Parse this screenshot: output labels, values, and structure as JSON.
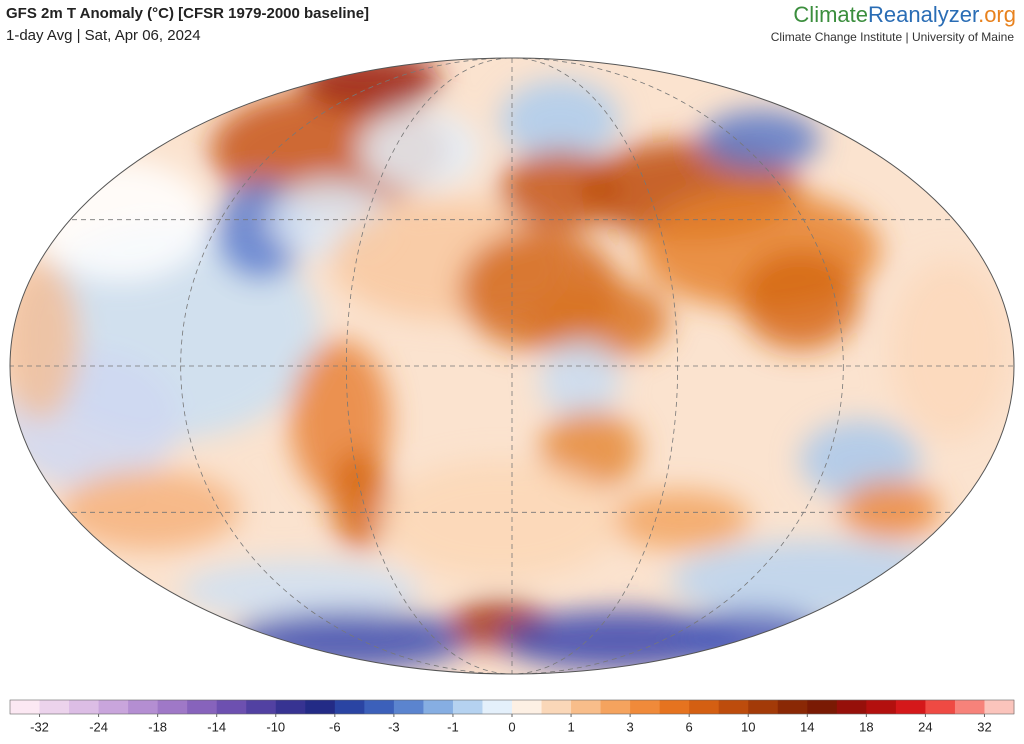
{
  "header": {
    "title": "GFS 2m T Anomaly (°C) [CFSR 1979-2000 baseline]",
    "subtitle": "1-day Avg | Sat, Apr 06, 2024"
  },
  "logo": {
    "parts": [
      "Climate",
      "Reanalyzer",
      ".org"
    ],
    "tagline": "Climate Change Institute | University of Maine"
  },
  "colorbar": {
    "ticks": [
      -32,
      -24,
      -18,
      -14,
      -10,
      -6,
      -3,
      -1,
      0,
      1,
      3,
      6,
      10,
      14,
      18,
      24,
      32
    ],
    "colors": [
      "#fce8f3",
      "#ecd3ec",
      "#dcbde5",
      "#c9a5dc",
      "#b48ed2",
      "#9f78c7",
      "#8763bc",
      "#6d50b0",
      "#5241a2",
      "#373392",
      "#232b86",
      "#2a44a3",
      "#3c60ba",
      "#5b84cf",
      "#86aee2",
      "#b5d2f0",
      "#e4f0fb",
      "#fdf0e4",
      "#fad7b8",
      "#f8bd8a",
      "#f5a35e",
      "#f08a3a",
      "#e6731f",
      "#d45f12",
      "#bd4c0c",
      "#a33a08",
      "#8a2805",
      "#7a1a04",
      "#96100a",
      "#b3100e",
      "#d5181a",
      "#ef4a43",
      "#f7827a",
      "#fbc4bc"
    ]
  }
}
